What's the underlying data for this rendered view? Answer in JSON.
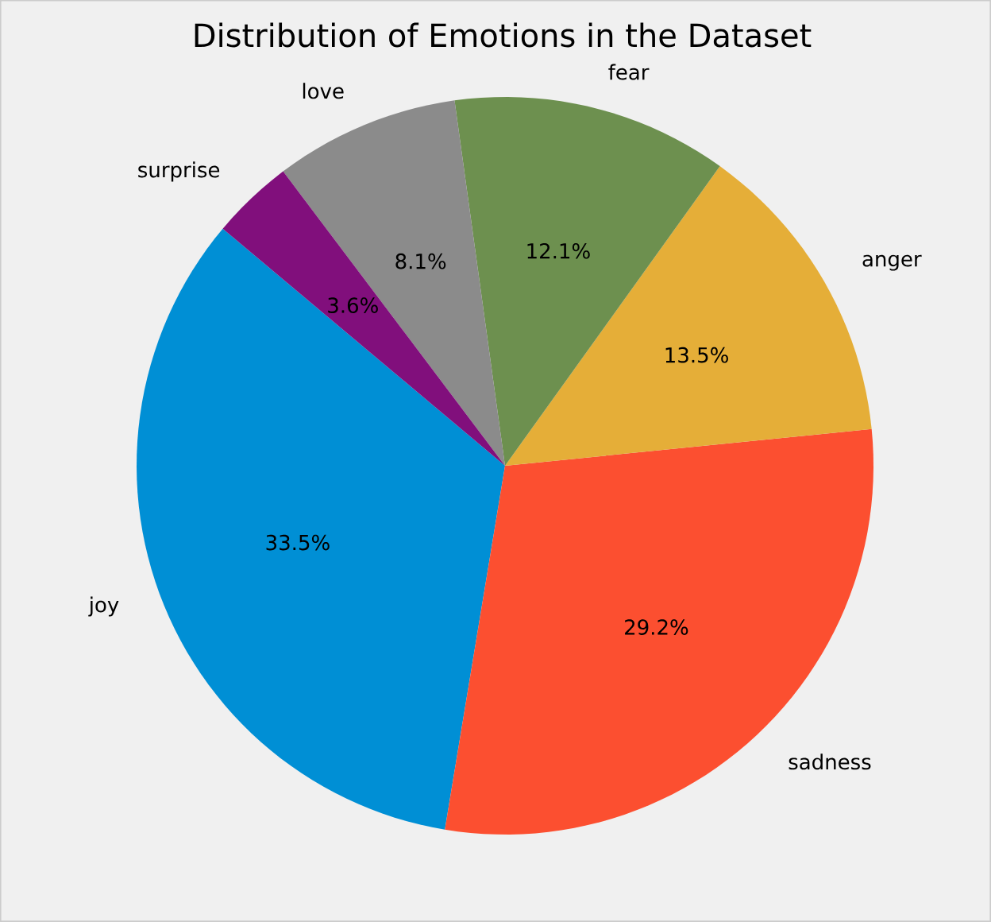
{
  "chart_data": {
    "type": "pie",
    "title": "Distribution of Emotions in the Dataset",
    "categories": [
      "joy",
      "sadness",
      "anger",
      "fear",
      "love",
      "surprise"
    ],
    "values": [
      33.5,
      29.2,
      13.5,
      12.1,
      8.1,
      3.6
    ],
    "value_labels": [
      "33.5%",
      "29.2%",
      "13.5%",
      "12.1%",
      "8.1%",
      "3.6%"
    ],
    "colors": [
      "#008fd5",
      "#fc4f30",
      "#e5ae38",
      "#6d904f",
      "#8b8b8b",
      "#810f7c"
    ]
  }
}
